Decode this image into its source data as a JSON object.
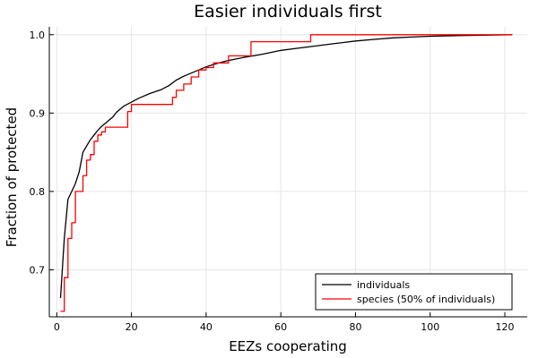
{
  "chart_data": {
    "type": "line",
    "title": "Easier individuals first",
    "xlabel": "EEZs cooperating",
    "ylabel": "Fraction of protected",
    "xlim": [
      -2,
      126
    ],
    "ylim": [
      0.64,
      1.01
    ],
    "xticks": [
      0,
      20,
      40,
      60,
      80,
      100,
      120
    ],
    "yticks": [
      0.7,
      0.8,
      0.9,
      1.0
    ],
    "xtick_labels": [
      "0",
      "20",
      "40",
      "60",
      "80",
      "100",
      "120"
    ],
    "ytick_labels": [
      "0.7",
      "0.8",
      "0.9",
      "1.0"
    ],
    "grid": true,
    "legend_position": "bottom-right",
    "series": [
      {
        "name": "individuals",
        "color": "#000000",
        "step": false,
        "points": [
          [
            1,
            0.664
          ],
          [
            2,
            0.74
          ],
          [
            3,
            0.79
          ],
          [
            4,
            0.8
          ],
          [
            5,
            0.81
          ],
          [
            6,
            0.825
          ],
          [
            7,
            0.85
          ],
          [
            8,
            0.858
          ],
          [
            9,
            0.866
          ],
          [
            10,
            0.872
          ],
          [
            11,
            0.878
          ],
          [
            12,
            0.883
          ],
          [
            13,
            0.887
          ],
          [
            14,
            0.891
          ],
          [
            15,
            0.895
          ],
          [
            16,
            0.901
          ],
          [
            18,
            0.909
          ],
          [
            20,
            0.914
          ],
          [
            22,
            0.919
          ],
          [
            25,
            0.925
          ],
          [
            28,
            0.93
          ],
          [
            30,
            0.935
          ],
          [
            32,
            0.942
          ],
          [
            34,
            0.947
          ],
          [
            36,
            0.951
          ],
          [
            38,
            0.955
          ],
          [
            40,
            0.959
          ],
          [
            42,
            0.962
          ],
          [
            45,
            0.966
          ],
          [
            48,
            0.969
          ],
          [
            50,
            0.971
          ],
          [
            55,
            0.975
          ],
          [
            60,
            0.98
          ],
          [
            65,
            0.983
          ],
          [
            70,
            0.986
          ],
          [
            75,
            0.989
          ],
          [
            80,
            0.992
          ],
          [
            85,
            0.994
          ],
          [
            90,
            0.996
          ],
          [
            95,
            0.997
          ],
          [
            100,
            0.998
          ],
          [
            110,
            0.999
          ],
          [
            122,
            1.0
          ]
        ]
      },
      {
        "name": "species (50% of individuals)",
        "color": "#ff0000",
        "step": true,
        "points": [
          [
            1,
            0.647
          ],
          [
            2,
            0.69
          ],
          [
            3,
            0.74
          ],
          [
            4,
            0.76
          ],
          [
            5,
            0.8
          ],
          [
            6,
            0.8
          ],
          [
            7,
            0.82
          ],
          [
            8,
            0.84
          ],
          [
            9,
            0.847
          ],
          [
            10,
            0.864
          ],
          [
            11,
            0.872
          ],
          [
            12,
            0.876
          ],
          [
            13,
            0.882
          ],
          [
            19,
            0.902
          ],
          [
            20,
            0.911
          ],
          [
            30,
            0.911
          ],
          [
            31,
            0.92
          ],
          [
            32,
            0.929
          ],
          [
            34,
            0.937
          ],
          [
            36,
            0.946
          ],
          [
            38,
            0.955
          ],
          [
            40,
            0.958
          ],
          [
            42,
            0.964
          ],
          [
            46,
            0.973
          ],
          [
            50,
            0.973
          ],
          [
            52,
            0.991
          ],
          [
            67,
            0.991
          ],
          [
            68,
            1.0
          ],
          [
            122,
            1.0
          ]
        ]
      }
    ]
  }
}
